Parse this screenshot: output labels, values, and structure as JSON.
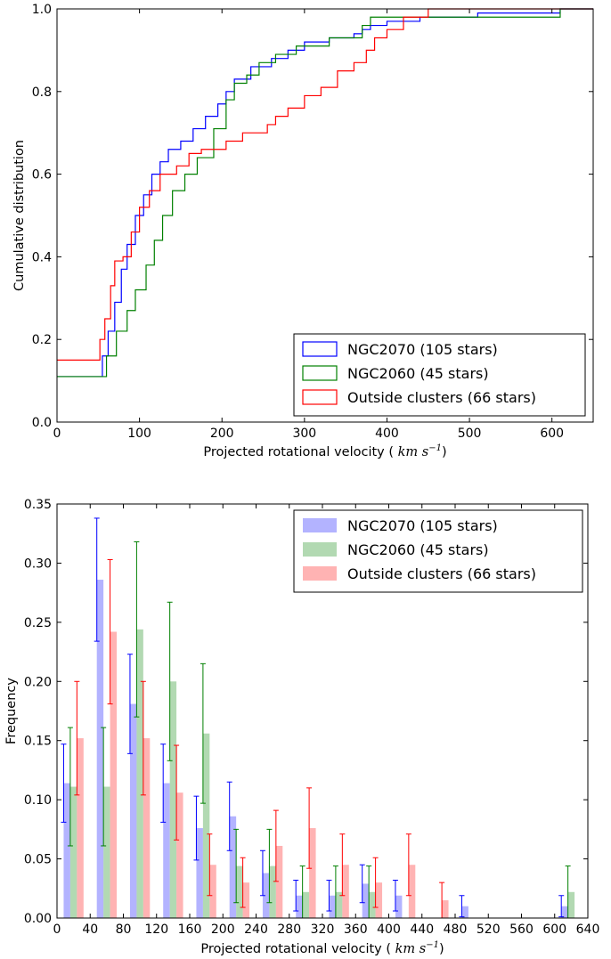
{
  "chart_data": [
    {
      "type": "line",
      "subtype": "cumulative-step",
      "xlabel": "Projected rotational velocity (",
      "xlabel_math": "km s",
      "xlabel_exp": "−1",
      "xlabel_close": ")",
      "ylabel": "Cumulative distribution",
      "xlim": [
        0,
        650
      ],
      "ylim": [
        0.0,
        1.0
      ],
      "xticks": [
        0,
        100,
        200,
        300,
        400,
        500,
        600
      ],
      "yticks": [
        0.0,
        0.2,
        0.4,
        0.6,
        0.8,
        1.0
      ],
      "legend_position": "bottom-right",
      "series": [
        {
          "name": "NGC2070 (105 stars)",
          "color": "#0000ff",
          "points": [
            [
              0,
              0.11
            ],
            [
              50,
              0.11
            ],
            [
              55,
              0.16
            ],
            [
              62,
              0.22
            ],
            [
              70,
              0.29
            ],
            [
              78,
              0.37
            ],
            [
              85,
              0.43
            ],
            [
              95,
              0.5
            ],
            [
              105,
              0.55
            ],
            [
              115,
              0.6
            ],
            [
              125,
              0.63
            ],
            [
              135,
              0.66
            ],
            [
              150,
              0.68
            ],
            [
              165,
              0.71
            ],
            [
              180,
              0.74
            ],
            [
              195,
              0.77
            ],
            [
              205,
              0.8
            ],
            [
              215,
              0.83
            ],
            [
              235,
              0.86
            ],
            [
              260,
              0.88
            ],
            [
              280,
              0.9
            ],
            [
              300,
              0.92
            ],
            [
              330,
              0.93
            ],
            [
              360,
              0.94
            ],
            [
              370,
              0.95
            ],
            [
              380,
              0.96
            ],
            [
              400,
              0.97
            ],
            [
              440,
              0.98
            ],
            [
              510,
              0.99
            ],
            [
              610,
              1.0
            ]
          ]
        },
        {
          "name": "NGC2060 (45 stars)",
          "color": "#008000",
          "points": [
            [
              0,
              0.11
            ],
            [
              50,
              0.11
            ],
            [
              60,
              0.16
            ],
            [
              72,
              0.22
            ],
            [
              85,
              0.27
            ],
            [
              95,
              0.32
            ],
            [
              108,
              0.38
            ],
            [
              118,
              0.44
            ],
            [
              128,
              0.5
            ],
            [
              140,
              0.56
            ],
            [
              155,
              0.6
            ],
            [
              170,
              0.64
            ],
            [
              190,
              0.71
            ],
            [
              205,
              0.78
            ],
            [
              215,
              0.82
            ],
            [
              230,
              0.84
            ],
            [
              245,
              0.87
            ],
            [
              265,
              0.89
            ],
            [
              290,
              0.91
            ],
            [
              330,
              0.93
            ],
            [
              370,
              0.96
            ],
            [
              380,
              0.98
            ],
            [
              610,
              1.0
            ]
          ]
        },
        {
          "name": "Outside clusters (66 stars)",
          "color": "#ff0000",
          "points": [
            [
              0,
              0.15
            ],
            [
              45,
              0.15
            ],
            [
              52,
              0.2
            ],
            [
              58,
              0.25
            ],
            [
              65,
              0.33
            ],
            [
              70,
              0.39
            ],
            [
              80,
              0.4
            ],
            [
              90,
              0.46
            ],
            [
              100,
              0.52
            ],
            [
              112,
              0.56
            ],
            [
              125,
              0.6
            ],
            [
              145,
              0.62
            ],
            [
              160,
              0.65
            ],
            [
              175,
              0.66
            ],
            [
              190,
              0.66
            ],
            [
              205,
              0.68
            ],
            [
              225,
              0.7
            ],
            [
              255,
              0.72
            ],
            [
              265,
              0.74
            ],
            [
              280,
              0.76
            ],
            [
              300,
              0.79
            ],
            [
              320,
              0.81
            ],
            [
              340,
              0.85
            ],
            [
              360,
              0.87
            ],
            [
              375,
              0.9
            ],
            [
              385,
              0.93
            ],
            [
              400,
              0.95
            ],
            [
              420,
              0.98
            ],
            [
              450,
              1.0
            ]
          ]
        }
      ]
    },
    {
      "type": "bar",
      "subtype": "grouped-histogram-with-errorbars",
      "xlabel": "Projected rotational velocity (",
      "xlabel_math": "km s",
      "xlabel_exp": "−1",
      "xlabel_close": ")",
      "ylabel": "Frequency",
      "xlim": [
        0,
        640
      ],
      "ylim": [
        0.0,
        0.35
      ],
      "xticks": [
        0,
        40,
        80,
        120,
        160,
        200,
        240,
        280,
        320,
        360,
        400,
        440,
        480,
        520,
        560,
        600,
        640
      ],
      "yticks": [
        0.0,
        0.05,
        0.1,
        0.15,
        0.2,
        0.25,
        0.3,
        0.35
      ],
      "ytick_labels": [
        "0.00",
        "0.05",
        "0.10",
        "0.15",
        "0.20",
        "0.25",
        "0.30",
        "0.35"
      ],
      "bin_width": 40,
      "bin_starts": [
        0,
        40,
        80,
        120,
        160,
        200,
        240,
        280,
        320,
        360,
        400,
        440,
        480,
        520,
        560,
        600
      ],
      "legend_position": "top-right",
      "series": [
        {
          "name": "NGC2070 (105 stars)",
          "color": "#8080ff",
          "error_color": "#0000ff",
          "values": [
            0.114,
            0.286,
            0.181,
            0.114,
            0.076,
            0.086,
            0.038,
            0.019,
            0.019,
            0.029,
            0.019,
            0.0,
            0.01,
            0.0,
            0.0,
            0.01
          ],
          "errors": [
            0.033,
            0.052,
            0.042,
            0.033,
            0.027,
            0.029,
            0.019,
            0.013,
            0.013,
            0.016,
            0.013,
            0.0,
            0.009,
            0.0,
            0.0,
            0.009
          ]
        },
        {
          "name": "NGC2060 (45 stars)",
          "color": "#7fbf7f",
          "error_color": "#008000",
          "values": [
            0.111,
            0.111,
            0.244,
            0.2,
            0.156,
            0.044,
            0.044,
            0.022,
            0.022,
            0.022,
            0.0,
            0.0,
            0.0,
            0.0,
            0.0,
            0.022
          ],
          "errors": [
            0.05,
            0.05,
            0.074,
            0.067,
            0.059,
            0.031,
            0.031,
            0.022,
            0.022,
            0.022,
            0.0,
            0.0,
            0.0,
            0.0,
            0.0,
            0.022
          ]
        },
        {
          "name": "Outside clusters (66 stars)",
          "color": "#ff8080",
          "error_color": "#ff0000",
          "values": [
            0.152,
            0.242,
            0.152,
            0.106,
            0.045,
            0.03,
            0.061,
            0.076,
            0.045,
            0.03,
            0.045,
            0.015,
            0.0,
            0.0,
            0.0,
            0.0
          ],
          "errors": [
            0.048,
            0.061,
            0.048,
            0.04,
            0.026,
            0.021,
            0.03,
            0.034,
            0.026,
            0.021,
            0.026,
            0.015,
            0.0,
            0.0,
            0.0,
            0.0
          ]
        }
      ]
    }
  ]
}
